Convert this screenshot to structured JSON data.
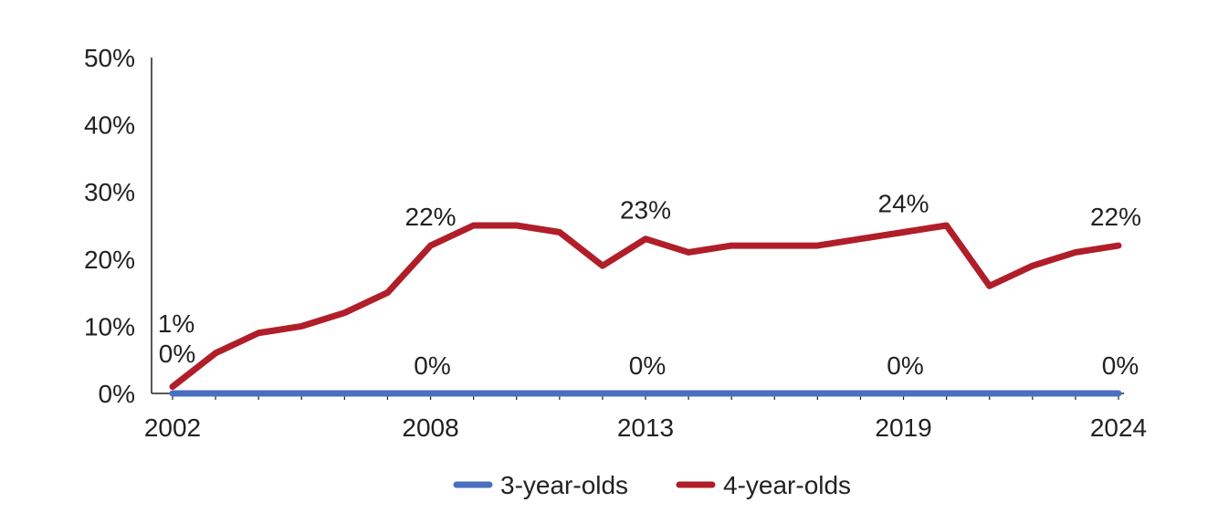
{
  "chart_data": {
    "type": "line",
    "x": [
      2002,
      2003,
      2004,
      2005,
      2006,
      2007,
      2008,
      2009,
      2010,
      2011,
      2012,
      2013,
      2014,
      2015,
      2016,
      2017,
      2018,
      2019,
      2020,
      2021,
      2022,
      2023,
      2024
    ],
    "x_tick_labels": [
      "2002",
      "2008",
      "2013",
      "2019",
      "2024"
    ],
    "y_tick_labels": [
      "0%",
      "10%",
      "20%",
      "30%",
      "40%",
      "50%"
    ],
    "ylim": [
      0,
      50
    ],
    "grid": false,
    "legend_position": "bottom",
    "series": [
      {
        "name": "3-year-olds",
        "color": "#4a6fc1",
        "values": [
          0,
          0,
          0,
          0,
          0,
          0,
          0,
          0,
          0,
          0,
          0,
          0,
          0,
          0,
          0,
          0,
          0,
          0,
          0,
          0,
          0,
          0,
          0
        ],
        "data_labels": [
          {
            "x": 2002,
            "label": "0%"
          },
          {
            "x": 2008,
            "label": "0%"
          },
          {
            "x": 2013,
            "label": "0%"
          },
          {
            "x": 2019,
            "label": "0%"
          },
          {
            "x": 2024,
            "label": "0%"
          }
        ]
      },
      {
        "name": "4-year-olds",
        "color": "#b01e2a",
        "values": [
          1,
          6,
          9,
          10,
          12,
          15,
          22,
          25,
          25,
          24,
          19,
          23,
          21,
          22,
          22,
          22,
          23,
          24,
          25,
          16,
          19,
          21,
          22
        ],
        "data_labels": [
          {
            "x": 2002,
            "label": "1%"
          },
          {
            "x": 2008,
            "label": "22%"
          },
          {
            "x": 2013,
            "label": "23%"
          },
          {
            "x": 2019,
            "label": "24%"
          },
          {
            "x": 2024,
            "label": "22%"
          }
        ]
      }
    ]
  }
}
